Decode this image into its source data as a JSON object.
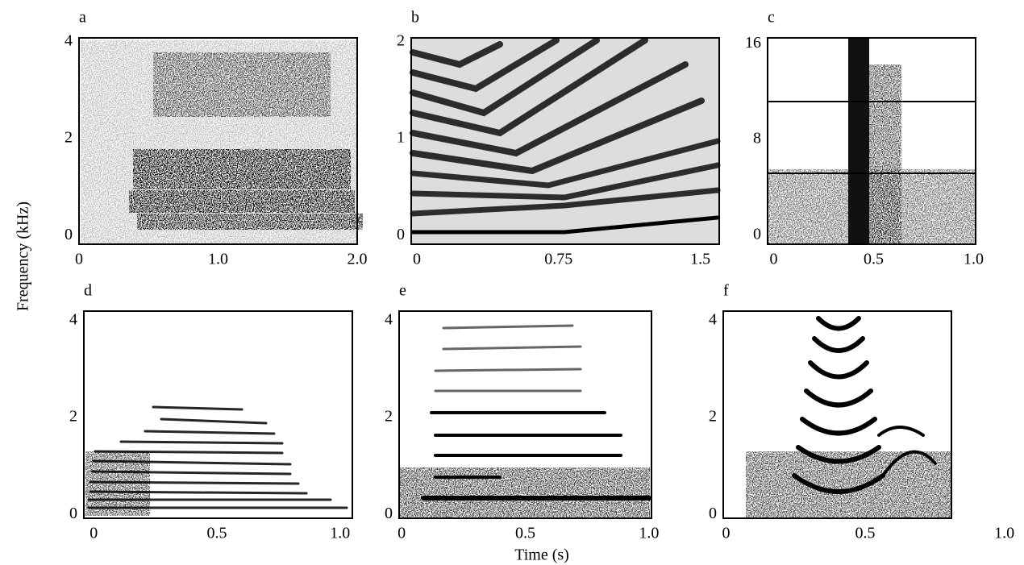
{
  "figure": {
    "ylabel": "Frequency (kHz)",
    "xlabel": "Time (s)"
  },
  "chart_data": [
    {
      "type": "spectrogram",
      "panel": "a",
      "xlim": [
        0,
        2
      ],
      "ylim": [
        -0.18,
        4.08
      ],
      "xticks": [
        0,
        {
          "value": 1,
          "label": "1.0"
        },
        {
          "value": 2,
          "label": "2.0"
        }
      ],
      "yticks": [
        0,
        2,
        4
      ]
    },
    {
      "type": "spectrogram",
      "panel": "b",
      "xlim": [
        -0.03,
        1.6
      ],
      "ylim": [
        -0.09,
        2.04
      ],
      "xticks": [
        0,
        0.75,
        1.5
      ],
      "yticks": [
        0,
        1,
        2
      ]
    },
    {
      "type": "spectrogram",
      "panel": "c",
      "xlim": [
        -0.03,
        1.01
      ],
      "ylim": [
        -0.75,
        16.5
      ],
      "xticks": [
        0,
        0.5,
        {
          "value": 1,
          "label": "1.0"
        }
      ],
      "yticks": [
        0,
        8,
        16
      ]
    },
    {
      "type": "spectrogram",
      "panel": "d",
      "xlim": [
        -0.04,
        1.05
      ],
      "ylim": [
        -0.08,
        4.2
      ],
      "xticks": [
        0,
        0.5,
        {
          "value": 1,
          "label": "1.0"
        }
      ],
      "yticks": [
        0,
        2,
        4
      ]
    },
    {
      "type": "spectrogram",
      "panel": "e",
      "xlim": [
        -0.01,
        1.01
      ],
      "ylim": [
        -0.08,
        4.2
      ],
      "xticks": [
        0,
        0.5,
        {
          "value": 1,
          "label": "1.0"
        }
      ],
      "yticks": [
        0,
        2,
        4
      ]
    },
    {
      "type": "spectrogram",
      "panel": "f",
      "xlim": [
        -0.01,
        0.81
      ],
      "ylim": [
        -0.08,
        4.2
      ],
      "xticks": [
        0,
        0.5,
        {
          "value": 1,
          "label": "1.0"
        }
      ],
      "yticks": [
        0,
        2,
        4
      ]
    }
  ]
}
